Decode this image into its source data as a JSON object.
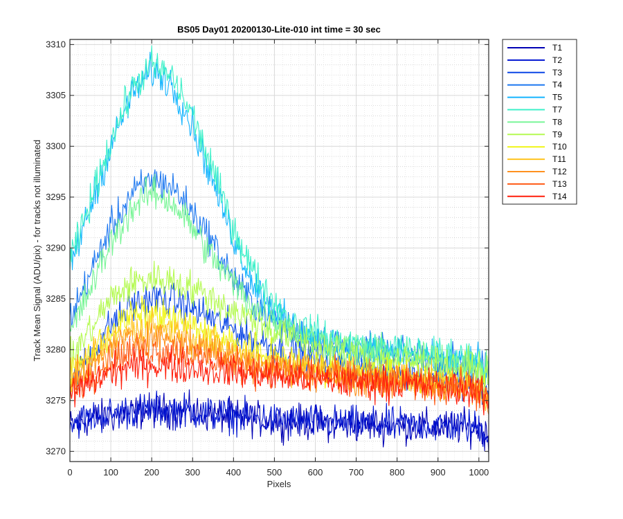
{
  "chart_data": {
    "type": "line",
    "title": "BS05 Day01 20200130-Lite-010 int time = 30 sec",
    "xlabel": "Pixels",
    "ylabel": "Track Mean Signal (ADU/pix) - for tracks not illuminated",
    "xlim": [
      0,
      1024
    ],
    "ylim": [
      3269,
      3310.5
    ],
    "xticks": [
      0,
      100,
      200,
      300,
      400,
      500,
      600,
      700,
      800,
      900,
      1000
    ],
    "yticks": [
      3270,
      3275,
      3280,
      3285,
      3290,
      3295,
      3300,
      3305,
      3310
    ],
    "grid": true,
    "minor_grid": true,
    "legend_position": "outside-top-right",
    "x": [
      0,
      50,
      100,
      150,
      200,
      250,
      300,
      350,
      400,
      450,
      500,
      550,
      600,
      650,
      700,
      750,
      800,
      850,
      900,
      950,
      1000,
      1024
    ],
    "series": [
      {
        "name": "T1",
        "color": "#0000b4",
        "values": [
          3272.5,
          3273.2,
          3273.5,
          3273.8,
          3274.0,
          3274.0,
          3273.8,
          3273.6,
          3273.4,
          3273.2,
          3273.0,
          3272.9,
          3272.8,
          3272.7,
          3272.6,
          3272.6,
          3272.5,
          3272.5,
          3272.4,
          3272.4,
          3272.3,
          3271.5
        ]
      },
      {
        "name": "T2",
        "color": "#0014d2",
        "values": [
          3272.8,
          3273.3,
          3273.7,
          3274.0,
          3274.1,
          3274.1,
          3273.9,
          3273.7,
          3273.5,
          3273.3,
          3273.1,
          3273.0,
          3272.9,
          3272.8,
          3272.7,
          3272.7,
          3272.6,
          3272.6,
          3272.5,
          3272.5,
          3272.4,
          3271.7
        ]
      },
      {
        "name": "T3",
        "color": "#0a46e6",
        "values": [
          3276.5,
          3279.5,
          3282.5,
          3284.3,
          3285.0,
          3284.8,
          3284.0,
          3283.0,
          3282.0,
          3281.0,
          3280.3,
          3279.7,
          3279.2,
          3278.8,
          3278.4,
          3278.1,
          3277.8,
          3277.5,
          3277.3,
          3277.1,
          3276.8,
          3275.5
        ]
      },
      {
        "name": "T4",
        "color": "#1e78f0",
        "values": [
          3283.0,
          3287.5,
          3292.0,
          3295.2,
          3296.8,
          3296.0,
          3293.5,
          3290.5,
          3287.0,
          3284.5,
          3283.0,
          3281.8,
          3281.0,
          3280.5,
          3280.0,
          3279.8,
          3279.5,
          3279.3,
          3279.0,
          3278.8,
          3278.6,
          3277.5
        ]
      },
      {
        "name": "T5",
        "color": "#14b4ff",
        "values": [
          3288.0,
          3294.0,
          3300.0,
          3305.0,
          3307.5,
          3306.0,
          3302.0,
          3296.5,
          3291.0,
          3286.5,
          3283.8,
          3282.0,
          3281.0,
          3280.5,
          3280.0,
          3279.8,
          3279.5,
          3279.3,
          3279.0,
          3278.8,
          3278.6,
          3277.5
        ]
      },
      {
        "name": "T7",
        "color": "#3cf0c8",
        "values": [
          3288.5,
          3294.5,
          3300.5,
          3305.5,
          3308.0,
          3306.8,
          3303.0,
          3297.5,
          3292.0,
          3287.5,
          3284.5,
          3282.5,
          3281.5,
          3281.0,
          3280.5,
          3280.2,
          3280.0,
          3279.8,
          3279.6,
          3279.4,
          3279.0,
          3278.0
        ]
      },
      {
        "name": "T8",
        "color": "#78f596",
        "values": [
          3281.5,
          3286.0,
          3290.5,
          3293.8,
          3295.5,
          3294.5,
          3292.0,
          3289.0,
          3286.5,
          3284.2,
          3282.8,
          3281.8,
          3281.0,
          3280.5,
          3280.0,
          3279.7,
          3279.4,
          3279.2,
          3279.0,
          3278.8,
          3278.5,
          3277.5
        ]
      },
      {
        "name": "T9",
        "color": "#b4fa50",
        "values": [
          3279.0,
          3282.0,
          3285.0,
          3286.5,
          3287.0,
          3286.8,
          3286.0,
          3285.0,
          3283.8,
          3282.8,
          3281.8,
          3281.0,
          3280.3,
          3279.8,
          3279.4,
          3279.1,
          3278.9,
          3278.7,
          3278.5,
          3278.3,
          3278.0,
          3277.0
        ]
      },
      {
        "name": "T10",
        "color": "#f0f514",
        "values": [
          3277.5,
          3279.5,
          3281.8,
          3283.3,
          3283.5,
          3283.0,
          3282.2,
          3281.3,
          3280.5,
          3279.8,
          3279.2,
          3278.8,
          3278.4,
          3278.1,
          3277.8,
          3277.6,
          3277.4,
          3277.2,
          3277.0,
          3276.8,
          3276.5,
          3275.5
        ]
      },
      {
        "name": "T11",
        "color": "#ffc31e",
        "values": [
          3277.0,
          3278.8,
          3280.8,
          3282.0,
          3282.3,
          3281.9,
          3281.2,
          3280.5,
          3279.8,
          3279.2,
          3278.7,
          3278.3,
          3278.0,
          3277.7,
          3277.5,
          3277.3,
          3277.1,
          3276.9,
          3276.7,
          3276.5,
          3276.2,
          3275.2
        ]
      },
      {
        "name": "T12",
        "color": "#ff911e",
        "values": [
          3276.5,
          3278.2,
          3280.0,
          3281.0,
          3281.3,
          3281.0,
          3280.4,
          3279.8,
          3279.2,
          3278.7,
          3278.3,
          3278.0,
          3277.7,
          3277.5,
          3277.3,
          3277.1,
          3276.9,
          3276.8,
          3276.6,
          3276.4,
          3276.1,
          3275.0
        ]
      },
      {
        "name": "T13",
        "color": "#ff5a14",
        "values": [
          3276.0,
          3277.5,
          3279.0,
          3279.8,
          3280.0,
          3279.8,
          3279.4,
          3279.0,
          3278.6,
          3278.2,
          3277.9,
          3277.7,
          3277.5,
          3277.3,
          3277.1,
          3276.9,
          3276.8,
          3276.6,
          3276.5,
          3276.3,
          3276.0,
          3274.8
        ]
      },
      {
        "name": "T14",
        "color": "#ff1e0a",
        "values": [
          3275.5,
          3276.8,
          3277.8,
          3278.3,
          3278.5,
          3278.4,
          3278.2,
          3278.0,
          3277.8,
          3277.6,
          3277.4,
          3277.2,
          3277.0,
          3276.9,
          3276.8,
          3276.7,
          3276.6,
          3276.5,
          3276.4,
          3276.2,
          3275.9,
          3274.6
        ]
      }
    ],
    "noise_amplitude": 1.4
  }
}
